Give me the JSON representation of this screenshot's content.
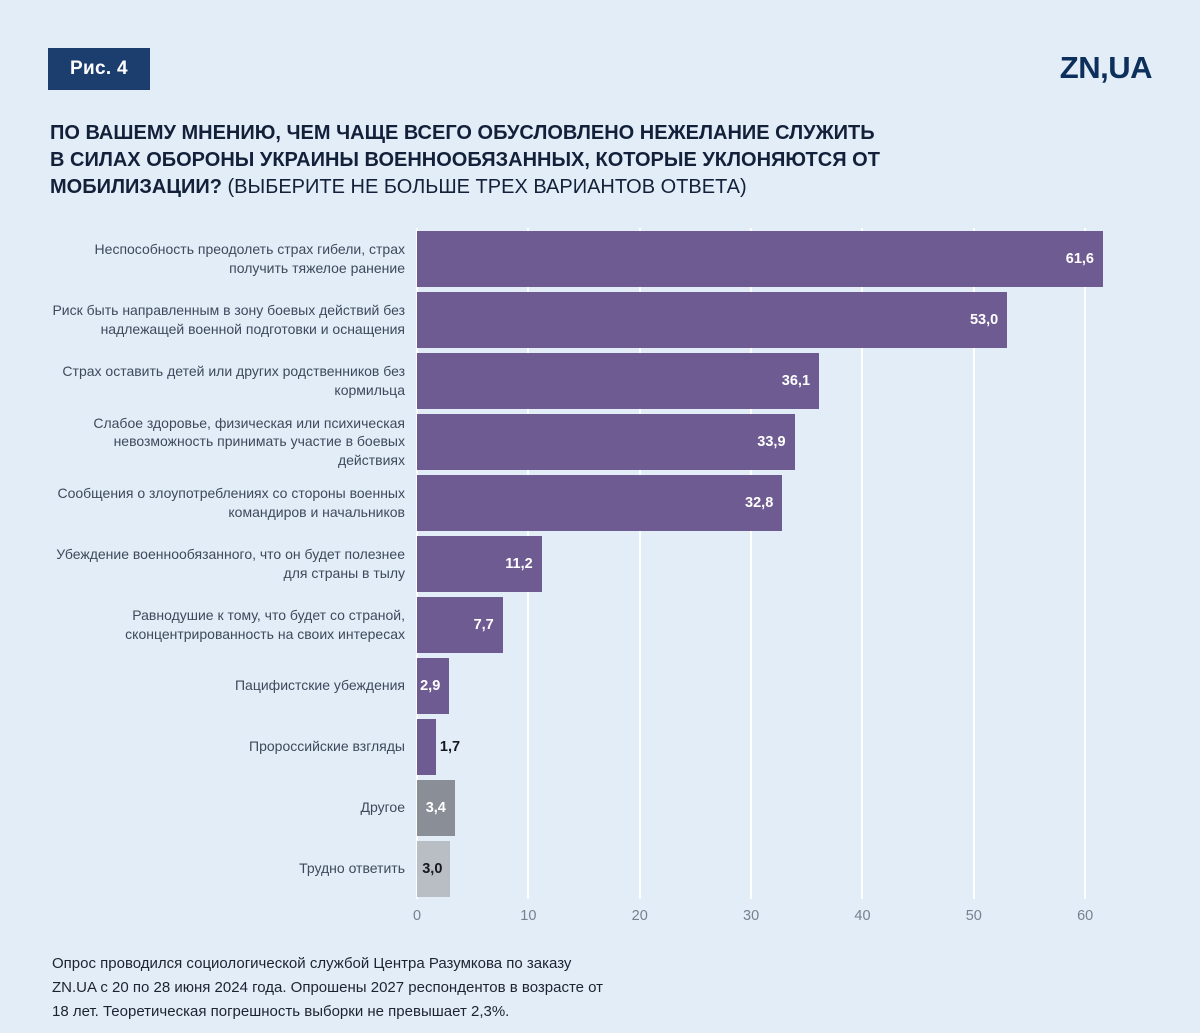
{
  "figure_label": "Рис. 4",
  "logo_text": "ZN,UA",
  "title": {
    "line1": "ПО ВАШЕМУ МНЕНИЮ, ЧЕМ ЧАЩЕ ВСЕГО ОБУСЛОВЛЕНО НЕЖЕЛАНИЕ СЛУЖИТЬ",
    "line2": "В СИЛАХ ОБОРОНЫ УКРАИНЫ ВОЕННООБЯЗАННЫХ, КОТОРЫЕ УКЛОНЯЮТСЯ ОТ",
    "line3_bold": "МОБИЛИЗАЦИИ?",
    "line3_normal": "(ВЫБЕРИТЕ НЕ БОЛЬШЕ ТРЕХ ВАРИАНТОВ ОТВЕТА)"
  },
  "footnote": {
    "line1": "Опрос проводился социологической службой Центра Разумкова по заказу",
    "line2": "ZN.UA с 20 по 28 июня 2024 года. Опрошены 2027 респондентов в возрасте от",
    "line3": "18 лет. Теоретическая погрешность выборки не превышает 2,3%."
  },
  "colors": {
    "background": "#e3edf8",
    "badge": "#1c3e6e",
    "purple": "#6e5b92",
    "gray": "#8a8f97",
    "light_gray": "#b9bdc4",
    "grid": "#ffffff",
    "title_text": "#13203a",
    "category_text": "#3e4a5c",
    "tick_text": "#76808f"
  },
  "chart_data": {
    "type": "bar",
    "orientation": "horizontal",
    "title": "ПО ВАШЕМУ МНЕНИЮ, ЧЕМ ЧАЩЕ ВСЕГО ОБУСЛОВЛЕНО НЕЖЕЛАНИЕ СЛУЖИТЬ В СИЛАХ ОБОРОНЫ УКРАИНЫ ВОЕННООБЯЗАННЫХ, КОТОРЫЕ УКЛОНЯЮТСЯ ОТ МОБИЛИЗАЦИИ? (ВЫБЕРИТЕ НЕ БОЛЬШЕ ТРЕХ ВАРИАНТОВ ОТВЕТА)",
    "xlabel": "",
    "ylabel": "",
    "categories": [
      "Неспособность преодолеть страх гибели, страх получить тяжелое ранение",
      "Риск быть направленным в зону боевых действий без надлежащей военной подготовки и оснащения",
      "Страх оставить детей или других родственников без кормильца",
      "Слабое здоровье, физическая или психическая невозможность принимать участие в боевых действиях",
      "Сообщения о злоупотреблениях со стороны военных командиров и начальников",
      "Убеждение военнообязанного, что он будет полезнее для страны в тылу",
      "Равнодушие к тому, что будет со страной, сконцентрированность на своих интересах",
      "Пацифистские убеждения",
      "Пророссийские взгляды",
      "Другое",
      "Трудно ответить"
    ],
    "values": [
      61.6,
      53.0,
      36.1,
      33.9,
      32.8,
      11.2,
      7.7,
      2.9,
      1.7,
      3.4,
      3.0
    ],
    "value_labels": [
      "61,6",
      "53,0",
      "36,1",
      "33,9",
      "32,8",
      "11,2",
      "7,7",
      "2,9",
      "1,7",
      "3,4",
      "3,0"
    ],
    "bar_colors": [
      "#6e5b92",
      "#6e5b92",
      "#6e5b92",
      "#6e5b92",
      "#6e5b92",
      "#6e5b92",
      "#6e5b92",
      "#6e5b92",
      "#6e5b92",
      "#8a8f97",
      "#b9bdc4"
    ],
    "value_label_styles": [
      "inside-white",
      "inside-white",
      "inside-white",
      "inside-white",
      "inside-white",
      "inside-white",
      "inside-white",
      "inside-white",
      "outside-dark",
      "inside-white",
      "inside-dark"
    ],
    "xlim": [
      0,
      66
    ],
    "x_ticks": [
      0,
      10,
      20,
      30,
      40,
      50,
      60
    ],
    "grid": "vertical white gridlines",
    "legend": "none"
  }
}
